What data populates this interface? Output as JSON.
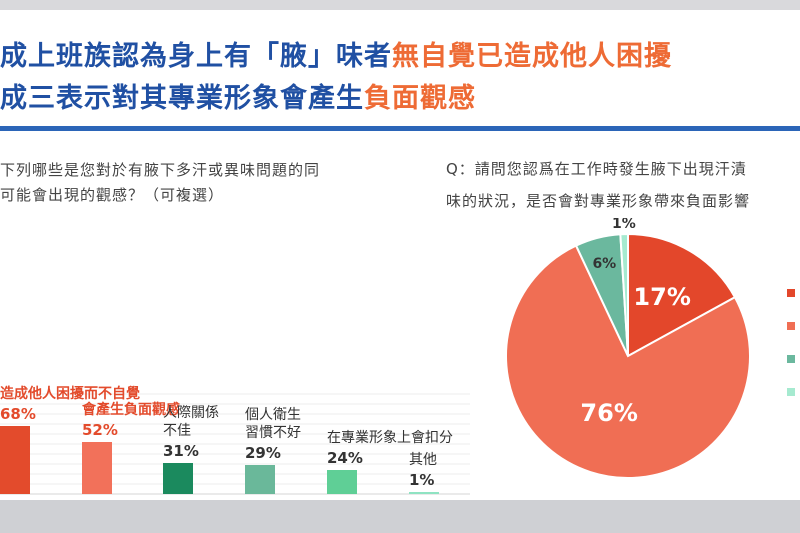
{
  "slide": {
    "title_line1": [
      {
        "text": "成上班族認為身上有「腋」味者",
        "color": "#2050a3"
      },
      {
        "text": "無自覺已造成他人困擾",
        "color": "#ee6b35"
      }
    ],
    "title_line2": [
      {
        "text": "成三表示對其專業形象會產生",
        "color": "#2050a3"
      },
      {
        "text": "負面觀感",
        "color": "#ee6b35"
      }
    ],
    "left_question": [
      "下列哪些是您對於有腋下多汗或異味問題的同",
      "可能會出現的觀感？（可複選）"
    ],
    "right_question": [
      "Q：請問您認爲在工作時發生腋下出現汗漬",
      "味的狀況，是否會對專業形象帶來負面影響"
    ]
  },
  "chart_data": [
    {
      "type": "bar",
      "categories": [
        "造成他人困擾而不自覺",
        "會產生負面觀感",
        "人際關係不佳",
        "個人衛生習慣不好",
        "在專業形象上會扣分",
        "其他"
      ],
      "category_lines": [
        [
          "造成他人困擾而不自覺"
        ],
        [
          "會產生負面觀感"
        ],
        [
          "人際關係",
          "不佳"
        ],
        [
          "個人衛生",
          "習慣不好"
        ],
        [
          "在專業形象上會扣分"
        ],
        [
          "其他"
        ]
      ],
      "values": [
        68,
        52,
        31,
        29,
        24,
        1
      ],
      "value_labels": [
        "68%",
        "52%",
        "31%",
        "29%",
        "24%",
        "1%"
      ],
      "colors": [
        "#e34b2c",
        "#f2715a",
        "#1b8a5e",
        "#6ab89a",
        "#5fcf96",
        "#8fe3c2"
      ],
      "label_colors": [
        "#e34b2c",
        "#e34b2c",
        "#333333",
        "#333333",
        "#333333",
        "#333333"
      ],
      "ylim": [
        0,
        100
      ],
      "grid": true
    },
    {
      "type": "pie",
      "values": [
        17,
        76,
        6,
        1
      ],
      "labels": [
        "17%",
        "76%",
        "6%",
        "1%"
      ],
      "colors": [
        "#e3472b",
        "#f06e54",
        "#6bb89e",
        "#a6ead0"
      ],
      "label_colors": [
        "#ffffff",
        "#ffffff",
        "#333333",
        "#333333"
      ]
    }
  ]
}
